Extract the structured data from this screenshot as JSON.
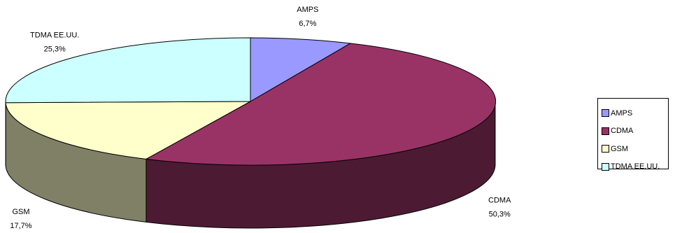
{
  "chart_data": {
    "type": "pie",
    "categories": [
      "AMPS",
      "CDMA",
      "GSM",
      "TDMA EE.UU."
    ],
    "values": [
      6.7,
      50.3,
      17.7,
      25.3
    ],
    "value_labels": [
      "6,7%",
      "50,3%",
      "17,7%",
      "25,3%"
    ],
    "colors": {
      "top": [
        "#9999ff",
        "#993366",
        "#ffffcc",
        "#ccffff"
      ],
      "side": [
        "#666699",
        "#4d1a33",
        "#808066",
        "#668080"
      ]
    },
    "style": "3d-pie",
    "legend": "right",
    "title": ""
  }
}
